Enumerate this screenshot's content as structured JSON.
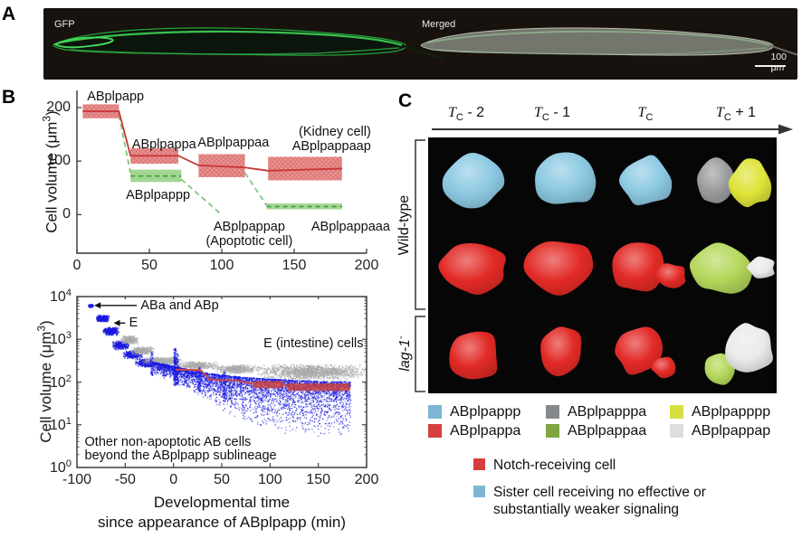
{
  "figure": {
    "panel_a": {
      "label": "A",
      "image_labels": [
        "GFP",
        "Merged"
      ],
      "scale_bar": "100 μm"
    },
    "panel_b": {
      "label": "B"
    },
    "panel_c": {
      "label": "C",
      "timepoints": [
        {
          "main": "T",
          "sub": "C",
          "suffix": " - 2"
        },
        {
          "main": "T",
          "sub": "C",
          "suffix": " - 1"
        },
        {
          "main": "T",
          "sub": "C",
          "suffix": ""
        },
        {
          "main": "T",
          "sub": "C",
          "suffix": " + 1"
        }
      ],
      "row_groups": [
        {
          "label": "Wild-type",
          "sup": ""
        },
        {
          "label": "lag-1",
          "sup": "-"
        }
      ],
      "palette": {
        "blue": "#8CC9E2",
        "red": "#E22A26",
        "gray": "#9A9C9E",
        "green": "#B4D75A",
        "yellow": "#DDE336",
        "white": "#EAEBE8"
      },
      "grid": [
        {
          "cells": [
            [
              "blue"
            ],
            [
              "blue"
            ],
            [
              "blue"
            ],
            [
              "gray",
              "yellow"
            ]
          ]
        },
        {
          "cells": [
            [
              "red"
            ],
            [
              "red"
            ],
            [
              "red",
              "red"
            ],
            [
              "green",
              "white"
            ]
          ]
        },
        {
          "cells": [
            [
              "red"
            ],
            [
              "red"
            ],
            [
              "red",
              "red"
            ],
            [
              "green",
              "white"
            ]
          ]
        }
      ],
      "legend": [
        {
          "hex": "#7FB5D4",
          "label": "ABplpappp"
        },
        {
          "hex": "#85898C",
          "label": "ABplpapppa"
        },
        {
          "hex": "#D8DE40",
          "label": "ABplpapppp"
        },
        {
          "hex": "#D6403C",
          "label": "ABplpappa"
        },
        {
          "hex": "#7FA640",
          "label": "ABplpappaa"
        },
        {
          "hex": "#DCDEDC",
          "label": "ABplpappap"
        }
      ],
      "signal_legend": [
        {
          "hex": "#D6403C",
          "lines": [
            "Notch-receiving cell",
            ""
          ]
        },
        {
          "hex": "#7FB5D4",
          "lines": [
            "Sister cell receiving no effective or",
            "substantially weaker signaling"
          ]
        }
      ]
    }
  },
  "chart_data": [
    {
      "type": "line",
      "id": "abplpapp-lineage-volume",
      "ylabel": {
        "pre": "Cell volume (",
        "unit": "μm",
        "sup": "3",
        "post": ")"
      },
      "xlim": [
        0,
        200
      ],
      "ylim": [
        -72,
        232
      ],
      "xticks": [
        0,
        50,
        100,
        150,
        200
      ],
      "yticks": [
        0,
        100,
        200
      ],
      "red_bands": [
        {
          "name": "ABplpapp",
          "t0": 4,
          "t1": 29,
          "lo": 180,
          "hi": 206,
          "mean": 193
        },
        {
          "name": "ABplpappa",
          "t0": 37,
          "t1": 70,
          "lo": 95,
          "hi": 124,
          "mean": 110
        },
        {
          "name": "ABplpappaa",
          "t0": 84,
          "t1": 116,
          "lo": 70,
          "hi": 113,
          "mean": 91
        },
        {
          "name": "ABplpappaap",
          "t0": 132,
          "t1": 183,
          "lo": 64,
          "hi": 108,
          "mean": 84
        }
      ],
      "green_bands": [
        {
          "name": "ABplpappp",
          "t0": 37,
          "t1": 72,
          "lo": 61,
          "hi": 84,
          "mean": 72
        },
        {
          "name": "ABplpappaaa",
          "t0": 131,
          "t1": 183,
          "lo": 10,
          "hi": 21,
          "mean": 15
        }
      ],
      "red_path": [
        [
          4,
          193
        ],
        [
          29,
          193
        ],
        [
          37,
          110
        ],
        [
          70,
          110
        ],
        [
          84,
          92
        ],
        [
          116,
          88
        ],
        [
          132,
          82
        ],
        [
          183,
          86
        ]
      ],
      "green_dashed": [
        [
          [
            29,
            186
          ],
          [
            37,
            78
          ]
        ],
        [
          [
            72,
            66
          ],
          [
            99,
            2
          ]
        ],
        [
          [
            116,
            78
          ],
          [
            131,
            17
          ]
        ]
      ],
      "annotations": [
        {
          "text": "ABplpapp",
          "t": 7,
          "v": 220,
          "align": "l"
        },
        {
          "text": "ABplpappa",
          "t": 38,
          "v": 131,
          "align": "l"
        },
        {
          "text": "ABplpappaa",
          "t": 108,
          "v": 134,
          "align": "c"
        },
        {
          "text": "(Kidney cell)",
          "t": 203,
          "v": 155,
          "align": "r"
        },
        {
          "text": "ABplpappaap",
          "t": 203,
          "v": 127,
          "align": "r"
        },
        {
          "text": "ABplpappp",
          "t": 56,
          "v": 36,
          "align": "c"
        },
        {
          "text": "ABplpappap",
          "t": 119,
          "v": -23,
          "align": "c"
        },
        {
          "text": "(Apoptotic cell)",
          "t": 119,
          "v": -50,
          "align": "c"
        },
        {
          "text": "ABplpappaaa",
          "t": 189,
          "v": -23,
          "align": "c"
        }
      ],
      "colors": {
        "red_fill": "rgba(226,102,102,0.72)",
        "red_hatch": "rgba(168,40,40,0.30)",
        "red_line": "#c93535",
        "green_fill": "rgba(148,207,128,0.85)",
        "green_line": "#3f9b3f",
        "green_connector": "#79c479",
        "axis": "#333333"
      }
    },
    {
      "type": "scatter",
      "id": "all-cells-volume-log",
      "ylabel": {
        "pre": "Cell volume (",
        "unit": "μm",
        "sup": "3",
        "post": ")"
      },
      "xlabel_lines": [
        "Developmental time",
        "since appearance of ABplpapp (min)"
      ],
      "xlim": [
        -100,
        200
      ],
      "ylog_exp": [
        0,
        4
      ],
      "xticks": [
        -100,
        -50,
        0,
        50,
        100,
        150,
        200
      ],
      "ytick_exponents": [
        0,
        1,
        2,
        3,
        4
      ],
      "clusters": [
        {
          "color": "blue",
          "t0": -89,
          "t1": -83,
          "lo": 5500,
          "hi": 7000,
          "n": 70
        },
        {
          "color": "blue",
          "t0": -81,
          "t1": -67,
          "lo": 2600,
          "hi": 3800,
          "n": 380
        },
        {
          "color": "blue",
          "t0": -74,
          "t1": -57,
          "lo": 1250,
          "hi": 2050,
          "n": 400
        },
        {
          "color": "blue",
          "t0": -64,
          "t1": -46,
          "lo": 580,
          "hi": 960,
          "n": 420
        },
        {
          "color": "blue",
          "t0": -53,
          "t1": -32,
          "lo": 360,
          "hi": 570,
          "n": 420
        },
        {
          "color": "blue",
          "t0": -41,
          "t1": -17,
          "lo": 225,
          "hi": 365,
          "n": 430
        },
        {
          "color": "gray",
          "t0": -56,
          "t1": -37,
          "lo": 780,
          "hi": 1260,
          "n": 300
        },
        {
          "color": "gray",
          "t0": -46,
          "t1": -20,
          "lo": 440,
          "hi": 690,
          "n": 380
        },
        {
          "color": "gray",
          "t0": -33,
          "t1": 8,
          "lo": 255,
          "hi": 405,
          "n": 480
        },
        {
          "color": "gray",
          "t0": 3,
          "t1": 46,
          "lo": 195,
          "hi": 315,
          "n": 480
        },
        {
          "color": "gray",
          "t0": 40,
          "t1": 88,
          "lo": 160,
          "hi": 265,
          "n": 500
        },
        {
          "color": "gray",
          "t0": 85,
          "t1": 200,
          "lo": 115,
          "hi": 270,
          "n": 1700
        },
        {
          "color": "gray_sparse",
          "t0": 55,
          "t1": 183,
          "lo": 25,
          "hi": 115,
          "n": 160
        }
      ],
      "envelope": [
        [
          -22,
          300,
          150
        ],
        [
          -10,
          270,
          120
        ],
        [
          0,
          240,
          95
        ],
        [
          8,
          215,
          75
        ],
        [
          20,
          195,
          55
        ],
        [
          35,
          165,
          35
        ],
        [
          50,
          150,
          22
        ],
        [
          70,
          135,
          12
        ],
        [
          90,
          125,
          8
        ],
        [
          120,
          115,
          5.5
        ],
        [
          150,
          108,
          5
        ],
        [
          183,
          105,
          5
        ]
      ],
      "envelope_n": 4600,
      "streaks": [
        {
          "t": 1,
          "lo": 85,
          "hi": 620,
          "n": 260
        },
        {
          "t": 3.5,
          "lo": 90,
          "hi": 480,
          "n": 150
        },
        {
          "t": -23,
          "lo": 140,
          "hi": 520,
          "n": 90
        },
        {
          "t": 26,
          "lo": 60,
          "hi": 235,
          "n": 110
        },
        {
          "t": 52,
          "lo": 35,
          "hi": 185,
          "n": 90
        }
      ],
      "red_line": [
        [
          2,
          196
        ],
        [
          28,
          190
        ],
        [
          38,
          113
        ],
        [
          65,
          108
        ],
        [
          80,
          92
        ],
        [
          83,
          90
        ]
      ],
      "red_bands": [
        {
          "t0": 83,
          "t1": 114,
          "lo": 72,
          "hi": 106
        },
        {
          "t0": 118,
          "t1": 183,
          "lo": 62,
          "hi": 93
        }
      ],
      "red_connector": [
        [
          114,
          86
        ],
        [
          118,
          80
        ]
      ],
      "annotations": [
        {
          "text": "ABa and ABp",
          "t": -34,
          "v": 6200,
          "align": "l",
          "arrow": {
            "t1": -38,
            "t2": -82
          }
        },
        {
          "text": "E",
          "t": -46,
          "v": 2400,
          "align": "l",
          "arrow": {
            "t1": -50,
            "t2": -62
          }
        },
        {
          "text": "E (intestine) cells",
          "t": 145,
          "v": 800,
          "align": "c"
        },
        {
          "text": "Other non-apoptotic AB cells",
          "t": -92,
          "v": 4.0,
          "align": "l"
        },
        {
          "text": "beyond the ABplpapp sublineage",
          "t": -92,
          "v": 1.85,
          "align": "l"
        }
      ],
      "colors": {
        "blue": "#1a1ae0",
        "gray": "#a9a9a9",
        "gray_sparse": "#bbbbbb",
        "red_fill": "rgba(198,64,64,0.85)",
        "red_line": "#c84848",
        "axis": "#333333"
      }
    }
  ]
}
